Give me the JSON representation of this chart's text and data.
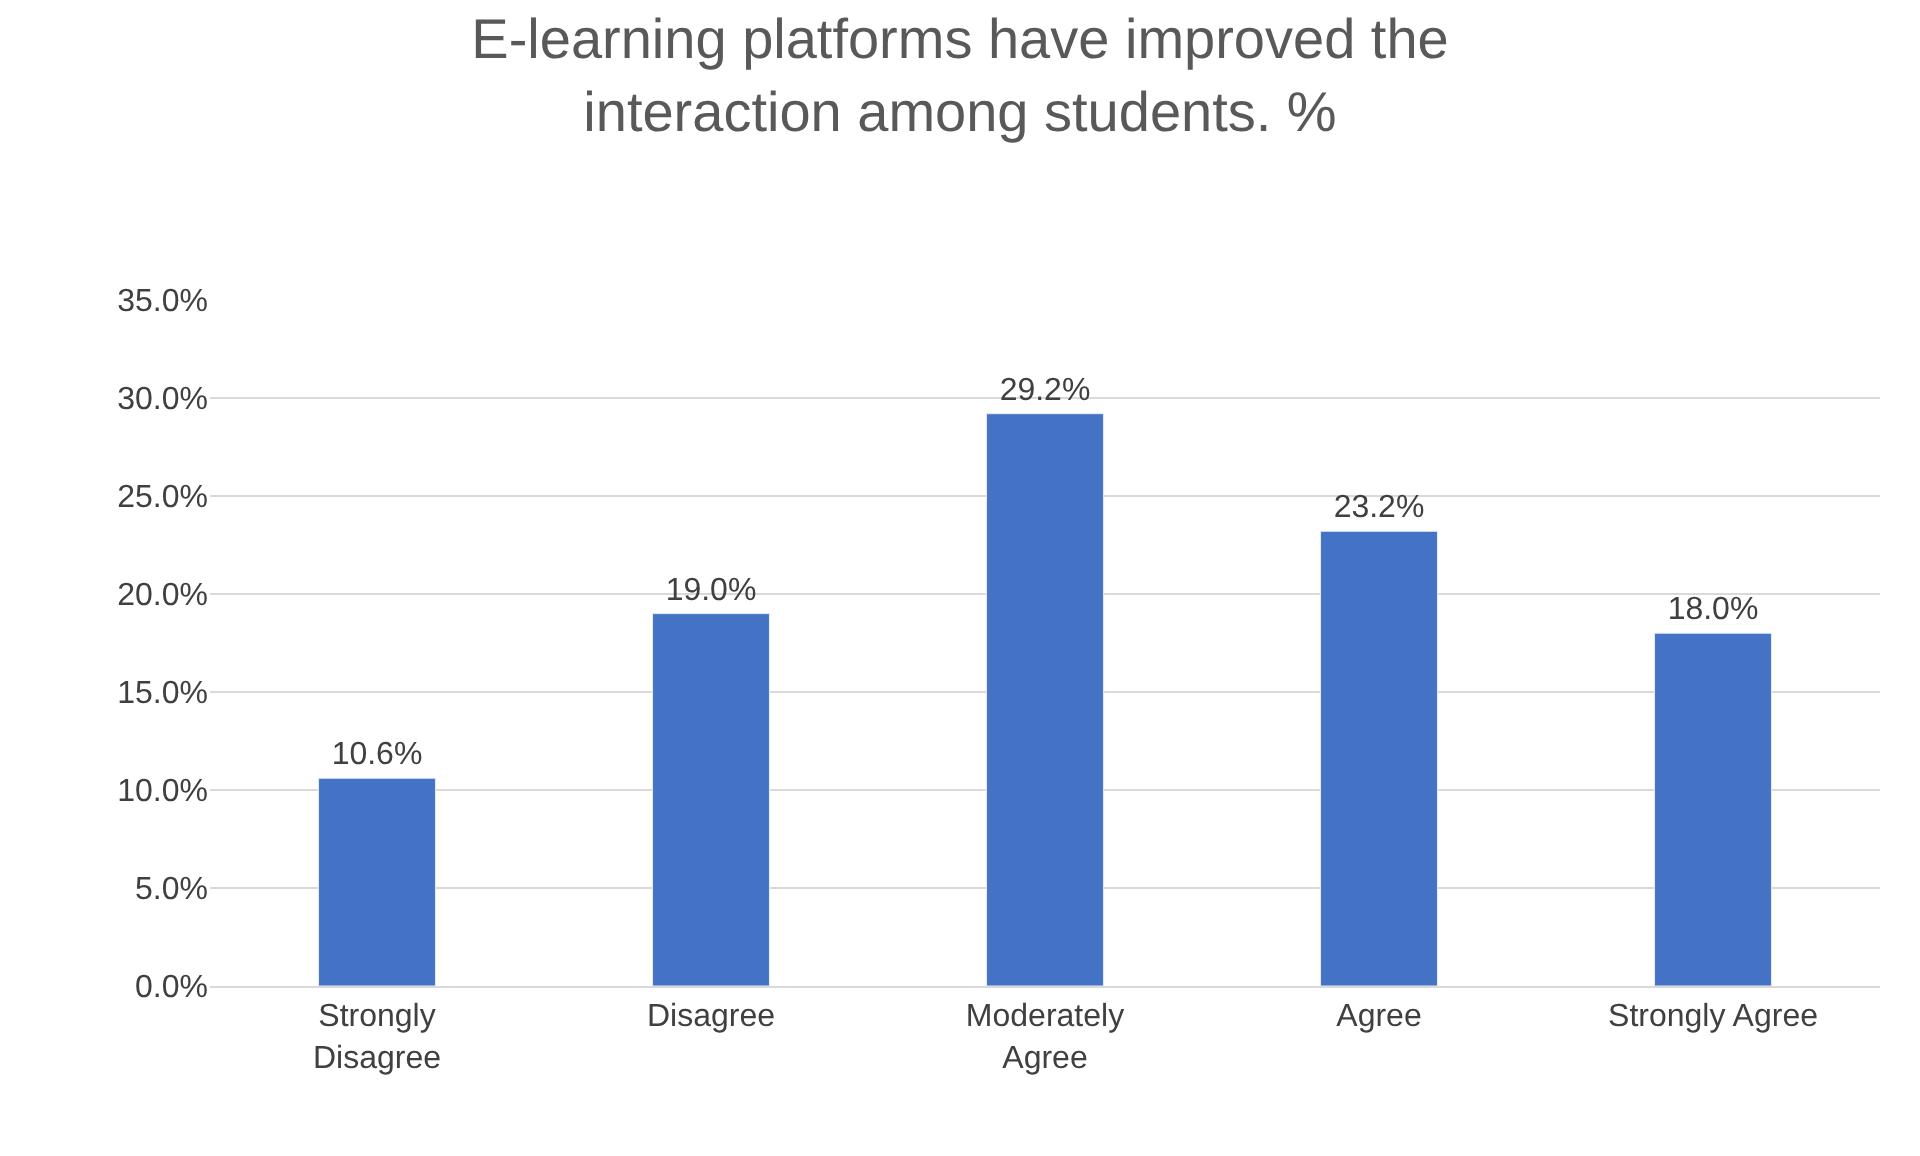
{
  "chart_data": {
    "type": "bar",
    "title": "E-learning platforms have improved the interaction among students. %",
    "categories": [
      "Strongly Disagree",
      "Disagree",
      "Moderately Agree",
      "Agree",
      "Strongly Agree"
    ],
    "values": [
      10.6,
      19.0,
      29.2,
      23.2,
      18.0
    ],
    "value_labels": [
      "10.6%",
      "19.0%",
      "29.2%",
      "23.2%",
      "18.0%"
    ],
    "color": "#4472c4",
    "ylim": [
      0,
      35
    ],
    "yticks": [
      {
        "value": 0,
        "label": "0.0%"
      },
      {
        "value": 5,
        "label": "5.0%"
      },
      {
        "value": 10,
        "label": "10.0%"
      },
      {
        "value": 15,
        "label": "15.0%"
      },
      {
        "value": 20,
        "label": "20.0%"
      },
      {
        "value": 25,
        "label": "25.0%"
      },
      {
        "value": 30,
        "label": "30.0%"
      },
      {
        "value": 35,
        "label": "35.0%"
      }
    ],
    "grid": "y",
    "legend": false
  }
}
